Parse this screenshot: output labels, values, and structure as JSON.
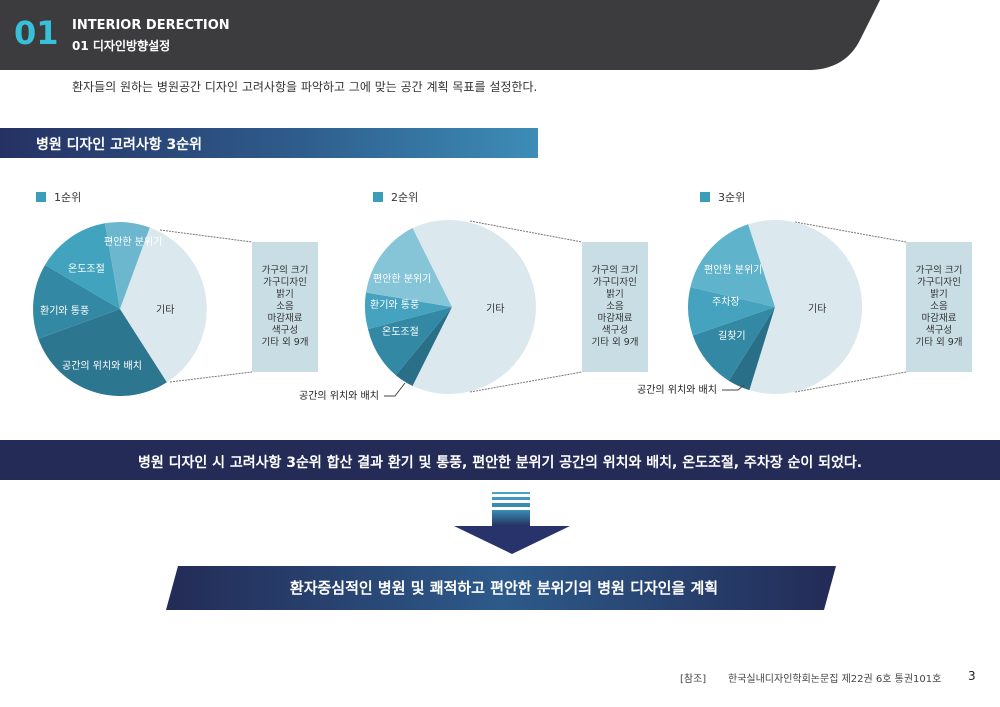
{
  "header": {
    "number": "01",
    "title": "INTERIOR DERECTION",
    "subtitle": "01 디자인방향설정"
  },
  "intro": "환자들의 원하는 병원공간 디자인 고려사항을 파악하고 그에 맞는 공간 계획 목표를 설정한다.",
  "section_title": "병원 디자인 고려사항 3순위",
  "charts": [
    {
      "legend": "1순위",
      "labels": [
        "편안한 분위기",
        "온도조절",
        "환기와 통풍",
        "공간의 위치와 배치",
        "기타"
      ],
      "others": [
        "가구의 크기",
        "가구디자인",
        "밝기",
        "소음",
        "마감재료",
        "색구성",
        "기타 외 9개"
      ]
    },
    {
      "legend": "2순위",
      "labels": [
        "편안한 분위기",
        "환기와 통풍",
        "온도조절",
        "기타"
      ],
      "callout": "공간의 위치와 배치",
      "others": [
        "가구의 크기",
        "가구디자인",
        "밝기",
        "소음",
        "마감재료",
        "색구성",
        "기타 외 9개"
      ]
    },
    {
      "legend": "3순위",
      "labels": [
        "편안한 분위기",
        "주차장",
        "길찾기",
        "기타"
      ],
      "callout": "공간의 위치와 배치",
      "others": [
        "가구의 크기",
        "가구디자인",
        "밝기",
        "소음",
        "마감재료",
        "색구성",
        "기타 외 9개"
      ]
    }
  ],
  "summary": "병원 디자인 시 고려사항 3순위 합산 결과 환기 및 통풍, 편안한 분위기 공간의 위치와 배치, 온도조절, 주차장 순이 되었다.",
  "conclusion": "환자중심적인 병원 및 쾌적하고 편안한 분위기의 병원 디자인을 계획",
  "footer": {
    "ref_label": "[참조]",
    "source": "한국실내디자인학회논문집 제22권 6호 통권101호",
    "page": "3"
  },
  "colors": {
    "header_dark": "#3c3c3e",
    "accent_cyan": "#37c0d8",
    "navy": "#232b56",
    "slice_dark": "#2d7690",
    "slice_mid": "#3c9ab3",
    "slice_light": "#5cb2cb",
    "slice_pale": "#86c4d8",
    "slice_rest": "#dbe9ef",
    "box": "#c9dde5"
  }
}
